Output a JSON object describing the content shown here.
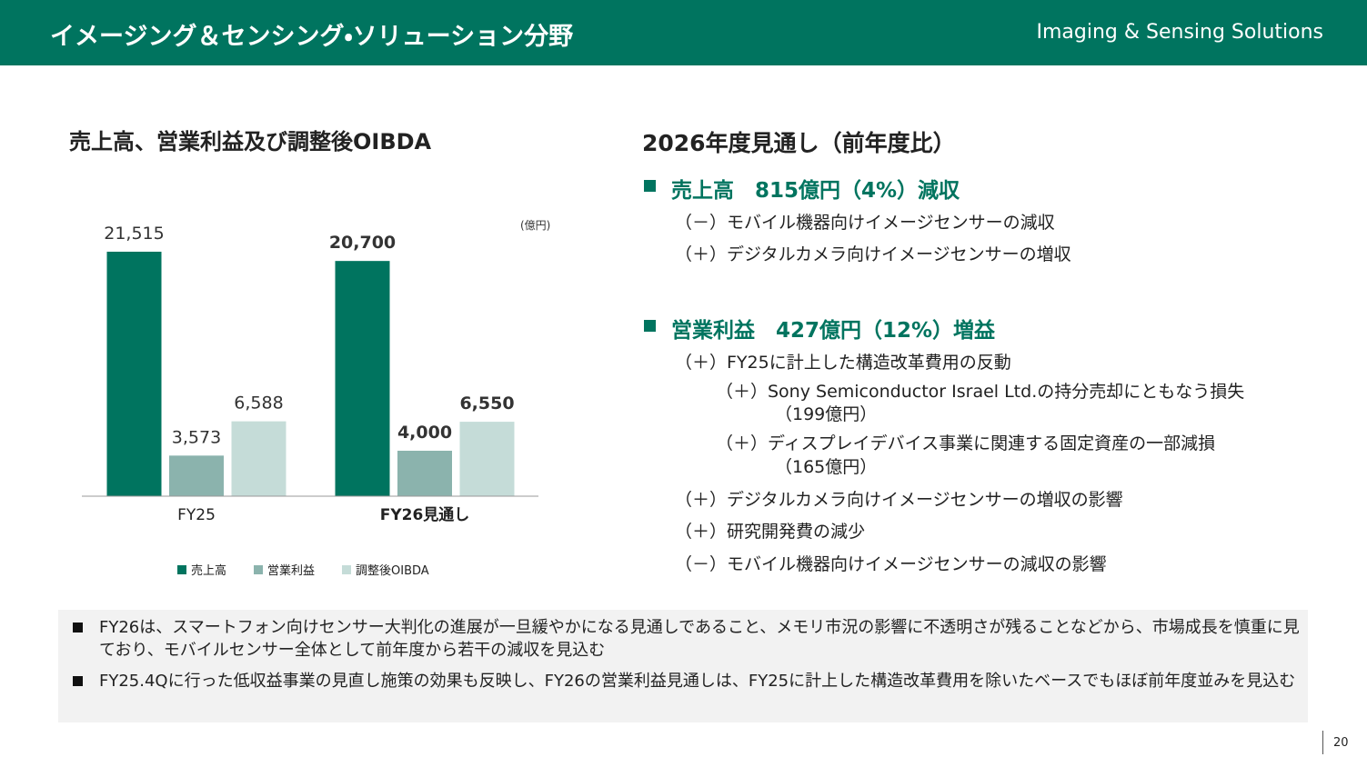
{
  "header": {
    "title": "イメージング＆センシング・ソリューション分野",
    "subtitle": "Imaging & Sensing Solutions"
  },
  "chart_data": {
    "type": "bar",
    "title": "売上高、営業利益及び調整後OIBDA",
    "unit": "(億円)",
    "categories": [
      "FY25",
      "FY26見通し"
    ],
    "series": [
      {
        "name": "売上高",
        "color": "#00745f",
        "values": [
          21515,
          20700
        ],
        "value_labels": [
          "21,515",
          "20,700"
        ]
      },
      {
        "name": "営業利益",
        "color": "#8bb3ad",
        "values": [
          3573,
          4000
        ],
        "value_labels": [
          "3,573",
          "4,000"
        ]
      },
      {
        "name": "調整後OIBDA",
        "color": "#c5dcd8",
        "values": [
          6588,
          6550
        ],
        "value_labels": [
          "6,588",
          "6,550"
        ]
      }
    ],
    "ylim": [
      0,
      25000
    ]
  },
  "outlook": {
    "title": "2026年度見通し（前年度比）",
    "sections": [
      {
        "heading": "売上高　815億円（4%）減収",
        "items": [
          "（－）モバイル機器向けイメージセンサーの減収",
          "（＋）デジタルカメラ向けイメージセンサーの増収"
        ]
      },
      {
        "heading": "営業利益　427億円（12%）増益",
        "items": [
          "（＋）FY25に計上した構造改革費用の反動",
          "（＋）Sony Semiconductor Israel Ltd.の持分売却にともなう損失",
          "（199億円）",
          "（＋）ディスプレイデバイス事業に関連する固定資産の一部減損",
          "（165億円）",
          "（＋）デジタルカメラ向けイメージセンサーの増収の影響",
          "（＋）研究開発費の減少",
          "（－）モバイル機器向けイメージセンサーの減収の影響"
        ]
      }
    ]
  },
  "notes": [
    "FY26は、スマートフォン向けセンサー大判化の進展が一旦緩やかになる見通しであること、メモリ市況の影響に不透明さが残ることなどから、市場成長を慎重に見ており、モバイルセンサー全体として前年度から若干の減収を見込む",
    "FY25.4Qに行った低収益事業の見直し施策の効果も反映し、FY26の営業利益見通しは、FY25に計上した構造改革費用を除いたベースでもほぼ前年度並みを見込む"
  ],
  "page_number": "20"
}
